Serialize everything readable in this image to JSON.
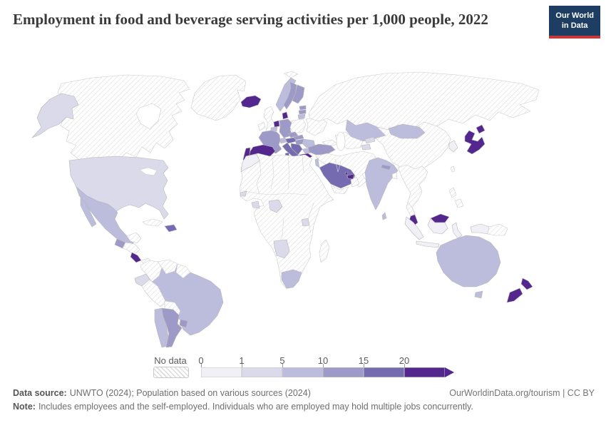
{
  "header": {
    "title": "Employment in food and beverage serving activities per 1,000 people, 2022",
    "logo_line1": "Our World",
    "logo_line2": "in Data"
  },
  "colors": {
    "logo_bg": "#1d3d63",
    "logo_accent": "#c5393b",
    "title_text": "#3a3a3a",
    "tick_text": "#5b5b5b",
    "country_border": "#b6b6b6",
    "nodata_border": "#cccccc"
  },
  "legend": {
    "no_data_label": "No data",
    "tick_labels": [
      "0",
      "1",
      "5",
      "10",
      "15",
      "20"
    ],
    "bucket_order": [
      "0-1",
      "1-5",
      "5-10",
      "10-15",
      "15-20",
      "20+"
    ]
  },
  "footer": {
    "source_label": "Data source:",
    "source_rest": "UNWTO (2024); Population based on various sources (2024)",
    "credit": "OurWorldinData.org/tourism | CC BY",
    "note_label": "Note:",
    "note_rest": "Includes employees and the self-employed. Individuals who are employed may hold multiple jobs concurrently."
  },
  "chart_data": {
    "type": "heatmap",
    "subtype": "choropleth-world-map",
    "title": "Employment in food and beverage serving activities per 1,000 people",
    "year": "2022",
    "unit": "per 1,000 people",
    "legend_ticks": [
      0,
      1,
      5,
      10,
      15,
      20
    ],
    "bucket_colors": {
      "0-1": "#f2f0f7",
      "1-5": "#dadaeb",
      "5-10": "#bcbddc",
      "10-15": "#9e9ac8",
      "15-20": "#756bb1",
      "20+": "#54278f"
    },
    "no_data_style": "hatched",
    "countries": {
      "usa": {
        "name": "United States",
        "bucket": "1-5"
      },
      "canada": {
        "name": "Canada",
        "bucket": "no-data"
      },
      "greenland": {
        "name": "Greenland",
        "bucket": "no-data"
      },
      "svalbard": {
        "name": "Svalbard",
        "bucket": "no-data"
      },
      "mexico": {
        "name": "Mexico",
        "bucket": "5-10"
      },
      "yucatan-belize": {
        "name": "Belize",
        "bucket": "no-data"
      },
      "guatemala": {
        "name": "Guatemala",
        "bucket": "10-15"
      },
      "honduras-nicaragua": {
        "name": "Honduras & Nicaragua",
        "bucket": "no-data"
      },
      "costa-rica": {
        "name": "Costa Rica",
        "bucket": "20+"
      },
      "panama": {
        "name": "Panama",
        "bucket": "no-data"
      },
      "cuba": {
        "name": "Cuba",
        "bucket": "no-data"
      },
      "dominican-republic": {
        "name": "Dominican Republic",
        "bucket": "15-20"
      },
      "colombia": {
        "name": "Colombia",
        "bucket": "no-data"
      },
      "venezuela": {
        "name": "Venezuela",
        "bucket": "no-data"
      },
      "guianas": {
        "name": "Guyana & Suriname",
        "bucket": "no-data"
      },
      "ecuador": {
        "name": "Ecuador",
        "bucket": "1-5"
      },
      "peru": {
        "name": "Peru",
        "bucket": "no-data"
      },
      "brazil": {
        "name": "Brazil",
        "bucket": "5-10"
      },
      "bolivia": {
        "name": "Bolivia",
        "bucket": "no-data"
      },
      "paraguay": {
        "name": "Paraguay",
        "bucket": "no-data"
      },
      "chile": {
        "name": "Chile",
        "bucket": "5-10"
      },
      "argentina": {
        "name": "Argentina",
        "bucket": "10-15"
      },
      "uruguay": {
        "name": "Uruguay",
        "bucket": "10-15"
      },
      "iceland": {
        "name": "Iceland",
        "bucket": "20+"
      },
      "ireland": {
        "name": "Ireland",
        "bucket": "no-data"
      },
      "uk": {
        "name": "United Kingdom",
        "bucket": "no-data"
      },
      "norway": {
        "name": "Norway",
        "bucket": "5-10"
      },
      "sweden": {
        "name": "Sweden",
        "bucket": "10-15"
      },
      "finland": {
        "name": "Finland",
        "bucket": "10-15"
      },
      "estonia": {
        "name": "Estonia",
        "bucket": "10-15"
      },
      "latvia": {
        "name": "Latvia",
        "bucket": "10-15"
      },
      "lithuania": {
        "name": "Lithuania",
        "bucket": "5-10"
      },
      "denmark": {
        "name": "Denmark",
        "bucket": "20+"
      },
      "netherlands": {
        "name": "Netherlands",
        "bucket": "20+"
      },
      "belgium": {
        "name": "Belgium",
        "bucket": "5-10"
      },
      "germany": {
        "name": "Germany",
        "bucket": "10-15"
      },
      "poland": {
        "name": "Poland",
        "bucket": "no-data"
      },
      "czechia": {
        "name": "Czechia",
        "bucket": "10-15"
      },
      "slovakia": {
        "name": "Slovakia",
        "bucket": "10-15"
      },
      "austria": {
        "name": "Austria",
        "bucket": "15-20"
      },
      "switzerland": {
        "name": "Switzerland",
        "bucket": "5-10"
      },
      "france": {
        "name": "France",
        "bucket": "10-15"
      },
      "hungary": {
        "name": "Hungary",
        "bucket": "10-15"
      },
      "romania": {
        "name": "Romania",
        "bucket": "5-10"
      },
      "balkans": {
        "name": "Croatia & Serbia",
        "bucket": "15-20"
      },
      "bulgaria": {
        "name": "Bulgaria",
        "bucket": "5-10"
      },
      "italy": {
        "name": "Italy",
        "bucket": "15-20"
      },
      "greece": {
        "name": "Greece",
        "bucket": "20+"
      },
      "spain": {
        "name": "Spain",
        "bucket": "20+"
      },
      "portugal": {
        "name": "Portugal",
        "bucket": "20+"
      },
      "ukraine-belarus": {
        "name": "Ukraine & Belarus",
        "bucket": "no-data"
      },
      "russia": {
        "name": "Russia",
        "bucket": "no-data"
      },
      "kazakhstan": {
        "name": "Kazakhstan",
        "bucket": "5-10"
      },
      "central-asia": {
        "name": "Uzbekistan & Turkmenistan",
        "bucket": "no-data"
      },
      "kyrgyzstan": {
        "name": "Kyrgyzstan",
        "bucket": "1-5"
      },
      "tajikistan": {
        "name": "Tajikistan",
        "bucket": "1-5"
      },
      "caucasus": {
        "name": "Caucasus",
        "bucket": "no-data"
      },
      "turkey": {
        "name": "Turkey",
        "bucket": "10-15"
      },
      "cyprus": {
        "name": "Cyprus",
        "bucket": "20+"
      },
      "middle-east": {
        "name": "Iran, Iraq, Afghanistan & Pakistan",
        "bucket": "no-data"
      },
      "israel": {
        "name": "Israel",
        "bucket": "5-10"
      },
      "saudi-arabia": {
        "name": "Saudi Arabia",
        "bucket": "15-20"
      },
      "yemen": {
        "name": "Yemen",
        "bucket": "no-data"
      },
      "oman": {
        "name": "Oman",
        "bucket": "no-data"
      },
      "uae": {
        "name": "United Arab Emirates",
        "bucket": "20+"
      },
      "qatar": {
        "name": "Qatar",
        "bucket": "20+"
      },
      "africa-other": {
        "name": "Other Africa",
        "bucket": "no-data"
      },
      "morocco": {
        "name": "Morocco",
        "bucket": "0-1"
      },
      "senegal": {
        "name": "Senegal",
        "bucket": "1-5"
      },
      "ivory-coast": {
        "name": "Cote d'Ivoire",
        "bucket": "1-5"
      },
      "nigeria": {
        "name": "Nigeria",
        "bucket": "1-5"
      },
      "angola": {
        "name": "Angola",
        "bucket": "1-5"
      },
      "uganda": {
        "name": "Uganda",
        "bucket": "1-5"
      },
      "south-africa": {
        "name": "South Africa",
        "bucket": "5-10"
      },
      "madagascar": {
        "name": "Madagascar",
        "bucket": "no-data"
      },
      "china": {
        "name": "China",
        "bucket": "no-data"
      },
      "mongolia": {
        "name": "Mongolia",
        "bucket": "5-10"
      },
      "south-korea": {
        "name": "South Korea",
        "bucket": "0-1"
      },
      "japan": {
        "name": "Japan",
        "bucket": "20+"
      },
      "taiwan": {
        "name": "Taiwan",
        "bucket": "no-data"
      },
      "india": {
        "name": "India",
        "bucket": "5-10"
      },
      "nepal": {
        "name": "Nepal",
        "bucket": "10-15"
      },
      "bangladesh": {
        "name": "Bangladesh",
        "bucket": "no-data"
      },
      "sri-lanka": {
        "name": "Sri Lanka",
        "bucket": "5-10"
      },
      "se-asia": {
        "name": "Mainland Southeast Asia",
        "bucket": "no-data"
      },
      "malaysia": {
        "name": "Malaysia",
        "bucket": "20+"
      },
      "indonesia": {
        "name": "Indonesia",
        "bucket": "0-1"
      },
      "png": {
        "name": "Papua New Guinea",
        "bucket": "no-data"
      },
      "philippines": {
        "name": "Philippines",
        "bucket": "no-data"
      },
      "australia": {
        "name": "Australia",
        "bucket": "5-10"
      },
      "new-zealand": {
        "name": "New Zealand",
        "bucket": "20+"
      }
    }
  }
}
